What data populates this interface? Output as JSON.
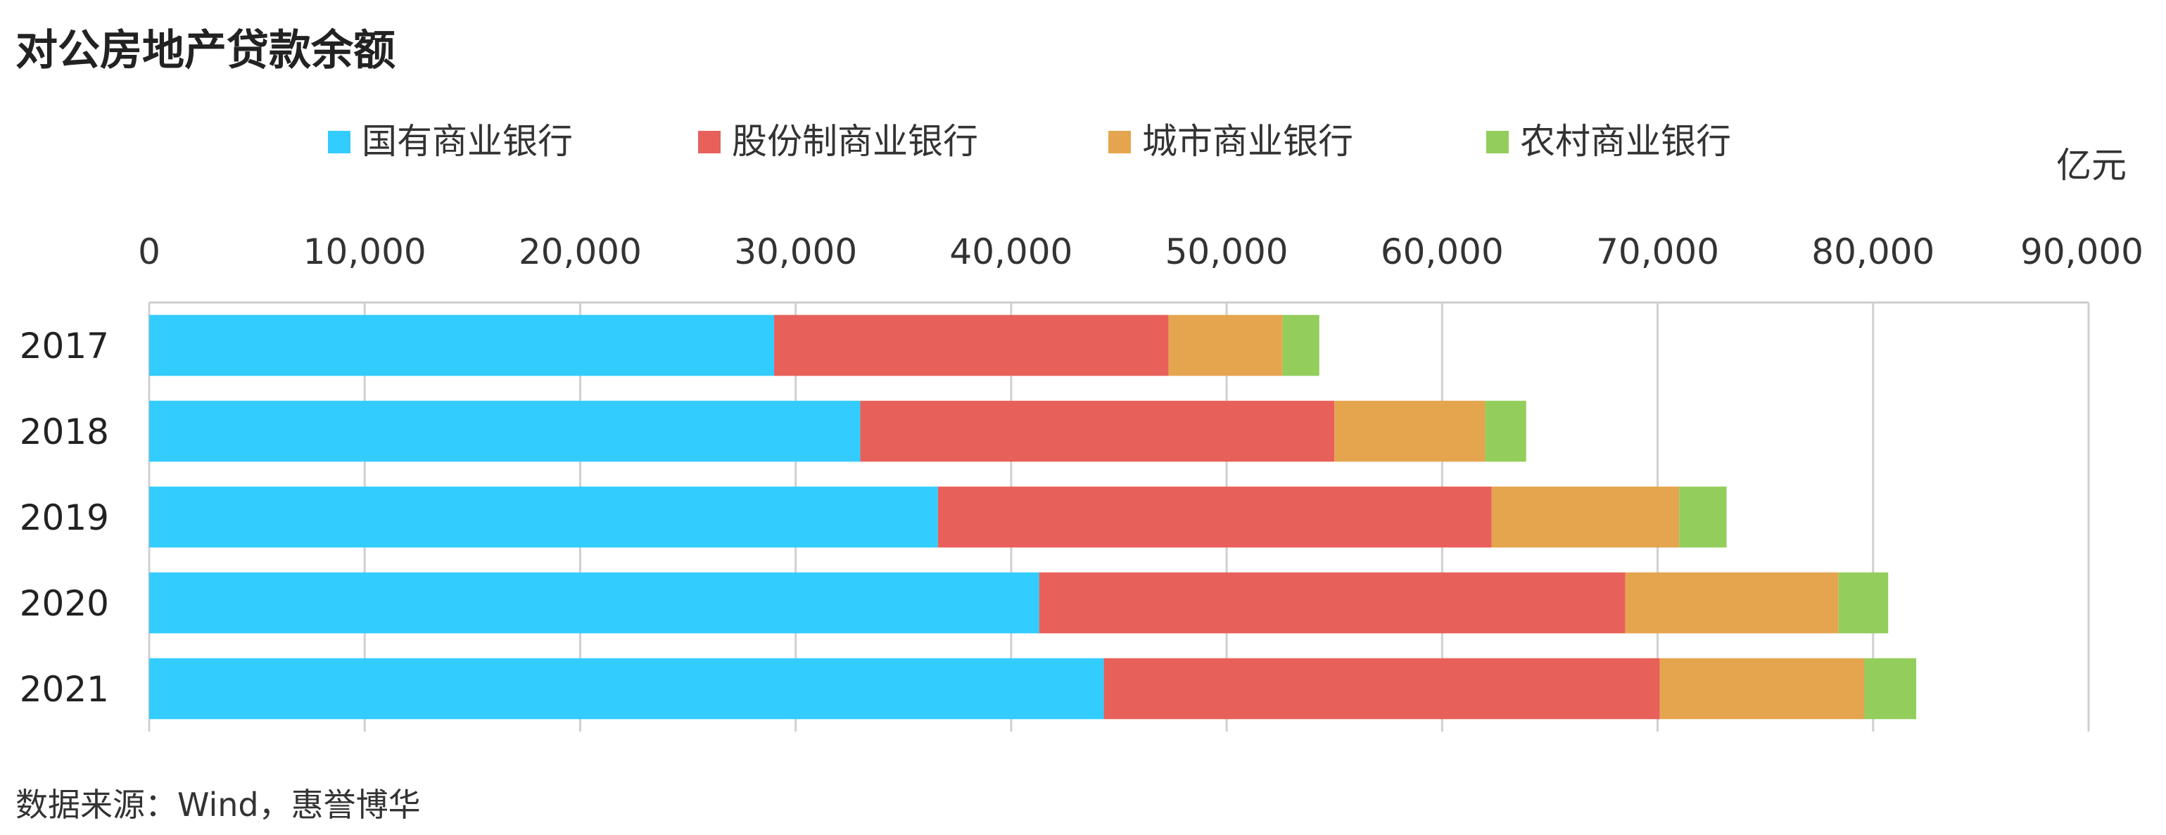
{
  "chart_data": {
    "type": "bar",
    "orientation": "horizontal",
    "stacked": true,
    "title": "对公房地产贷款余额",
    "unit_label": "亿元",
    "source": "数据来源：Wind，惠誉博华",
    "categories": [
      "2017",
      "2018",
      "2019",
      "2020",
      "2021"
    ],
    "series": [
      {
        "name": "国有商业银行",
        "color": "#33CCFF",
        "values": [
          29000,
          33000,
          36600,
          41300,
          44300
        ]
      },
      {
        "name": "股份制商业银行",
        "color": "#E8605A",
        "values": [
          18300,
          22000,
          25700,
          27200,
          25800
        ]
      },
      {
        "name": "城市商业银行",
        "color": "#E5A54E",
        "values": [
          5300,
          7000,
          8700,
          9900,
          9500
        ]
      },
      {
        "name": "农村商业银行",
        "color": "#93CE5C",
        "values": [
          1700,
          1900,
          2200,
          2300,
          2400
        ]
      }
    ],
    "xlim": [
      0,
      90000
    ],
    "x_ticks": [
      0,
      10000,
      20000,
      30000,
      40000,
      50000,
      60000,
      70000,
      80000,
      90000
    ],
    "x_tick_labels": [
      "0",
      "10,000",
      "20,000",
      "30,000",
      "40,000",
      "50,000",
      "60,000",
      "70,000",
      "80,000",
      "90,000"
    ],
    "x_axis_position": "top",
    "grid": "vertical",
    "legend": "top"
  }
}
